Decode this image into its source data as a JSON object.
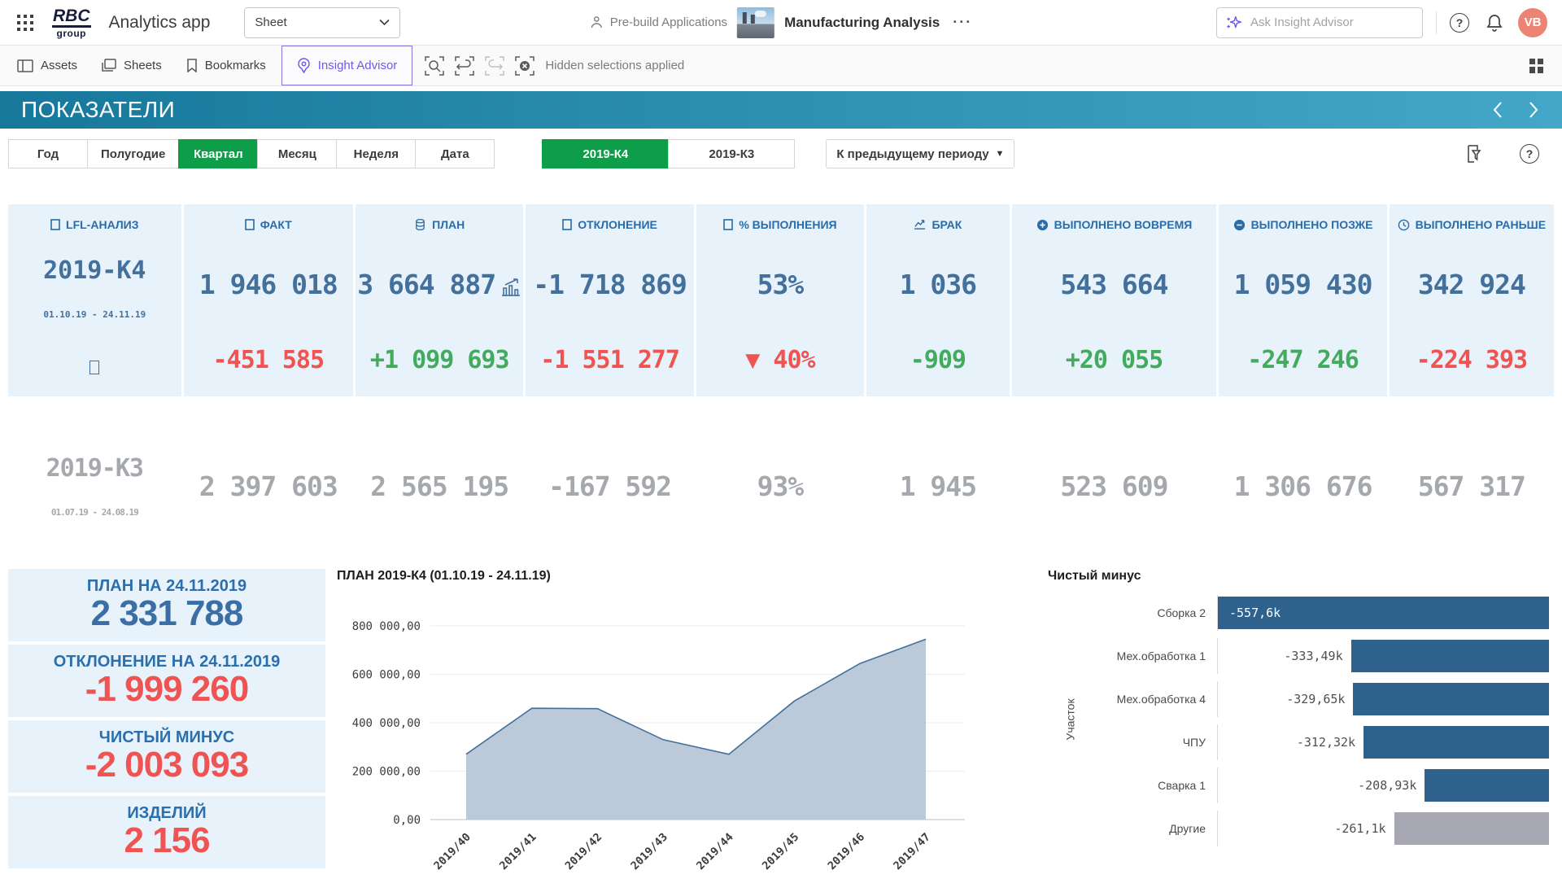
{
  "colors": {
    "teal_left": "#17789c",
    "teal_right": "#44a7c8",
    "selected_green": "#0e9e4a",
    "kpi_blue": "#44709c",
    "kpi_header_blue": "#2b6ca6",
    "negative_red": "#ef5352",
    "positive_green": "#43ab5e",
    "muted_gray": "#a5a9ad",
    "bar_blue": "#2e618c",
    "bar_gray": "#a8a8b4",
    "panel_blue": "#e7f2fa",
    "insight_purple": "#6a5ce8",
    "avatar_coral": "#ec8474"
  },
  "header": {
    "brand_top": "RBC",
    "brand_bottom": "group",
    "app_title": "Analytics app",
    "sheet_selector": "Sheet",
    "prebuild_label": "Pre-build Applications",
    "app_name": "Manufacturing Analysis",
    "more_label": "···",
    "search_placeholder": "Ask Insight Advisor",
    "avatar_initials": "VB",
    "help_label": "?"
  },
  "toolbar": {
    "assets": "Assets",
    "sheets": "Sheets",
    "bookmarks": "Bookmarks",
    "insight_advisor": "Insight Advisor",
    "hidden_selections": "Hidden selections applied"
  },
  "sheet": {
    "title": "ПОКАЗАТЕЛИ"
  },
  "filters": {
    "period_buttons": [
      {
        "label": "Год",
        "selected": false
      },
      {
        "label": "Полугодие",
        "selected": false
      },
      {
        "label": "Квартал",
        "selected": true
      },
      {
        "label": "Месяц",
        "selected": false
      },
      {
        "label": "Неделя",
        "selected": false
      },
      {
        "label": "Дата",
        "selected": false
      }
    ],
    "quarter_buttons": [
      {
        "label": "2019-К4",
        "selected": true
      },
      {
        "label": "2019-К3",
        "selected": false
      }
    ],
    "compare_dropdown": "К предыдущему периоду"
  },
  "kpi": {
    "lfl": {
      "header": "LFL-АНАЛИЗ",
      "current_period": "2019-К4",
      "current_dates": "01.10.19 - 24.11.19",
      "previous_period": "2019-К3",
      "previous_dates": "01.07.19 - 24.08.19"
    },
    "columns": [
      {
        "header": "ФАКТ",
        "icon": "doc",
        "value": "1 946 018",
        "delta": "-451 585",
        "delta_color": "red",
        "previous": "2 397 603"
      },
      {
        "header": "ПЛАН",
        "icon": "db",
        "value": "3 664 887",
        "value_icon": "chart-up",
        "delta": "+1 099 693",
        "delta_color": "green",
        "previous": "2 565 195"
      },
      {
        "header": "ОТКЛОНЕНИЕ",
        "icon": "doc",
        "value": "-1 718 869",
        "delta": "-1 551 277",
        "delta_color": "red",
        "previous": "-167 592"
      },
      {
        "header": "% ВЫПОЛНЕНИЯ",
        "icon": "doc",
        "value": "53%",
        "delta": "▼ 40%",
        "delta_color": "red",
        "previous": "93%"
      },
      {
        "header": "БРАК",
        "icon": "trend",
        "value": "1 036",
        "delta": "-909",
        "delta_color": "green",
        "previous": "1 945"
      },
      {
        "header": "ВЫПОЛНЕНО ВОВРЕМЯ",
        "icon": "plus",
        "value": "543 664",
        "delta": "+20 055",
        "delta_color": "green",
        "previous": "523 609"
      },
      {
        "header": "ВЫПОЛНЕНО ПОЗЖЕ",
        "icon": "minus",
        "value": "1 059 430",
        "delta": "-247 246",
        "delta_color": "green",
        "previous": "1 306 676"
      },
      {
        "header": "ВЫПОЛНЕНО РАНЬШЕ",
        "icon": "clock",
        "value": "342 924",
        "delta": "-224 393",
        "delta_color": "red",
        "previous": "567 317"
      }
    ]
  },
  "left_kpis": [
    {
      "label": "ПЛАН НА 24.11.2019",
      "value": "2 331 788",
      "color": "blue"
    },
    {
      "label": "ОТКЛОНЕНИЕ НА 24.11.2019",
      "value": "-1 999 260",
      "color": "red"
    },
    {
      "label": "ЧИСТЫЙ МИНУС",
      "value": "-2 003 093",
      "color": "red"
    },
    {
      "label": "ИЗДЕЛИЙ",
      "value": "2 156",
      "color": "red"
    }
  ],
  "chart_data": [
    {
      "type": "area",
      "title": "ПЛАН 2019-К4 (01.10.19 - 24.11.19)",
      "x": [
        "2019/40",
        "2019/41",
        "2019/42",
        "2019/43",
        "2019/44",
        "2019/45",
        "2019/46",
        "2019/47"
      ],
      "values": [
        270000,
        460000,
        458000,
        330000,
        270000,
        490000,
        645000,
        745000
      ],
      "ylim": [
        0,
        800000
      ],
      "ytick_labels": [
        "800 000,00",
        "600 000,00",
        "400 000,00",
        "200 000,00",
        "0,00"
      ],
      "grid": true,
      "legend": "none",
      "area_fill": "#bcc9d9",
      "line_color": "#40719f"
    },
    {
      "type": "bar",
      "orientation": "horizontal",
      "title": "Чистый минус",
      "ylabel": "Участок",
      "categories": [
        "Сборка 2",
        "Мех.обработка 1",
        "Мех.обработка 4",
        "ЧПУ",
        "Сварка 1",
        "Другие"
      ],
      "values": [
        -557600,
        -333490,
        -329650,
        -312320,
        -208930,
        -261100
      ],
      "value_labels": [
        "-557,6k",
        "-333,49k",
        "-329,65k",
        "-312,32k",
        "-208,93k",
        "-261,1k"
      ],
      "label_inside": [
        true,
        false,
        false,
        false,
        false,
        false
      ],
      "bar_colors": [
        "#2e618c",
        "#2e618c",
        "#2e618c",
        "#2e618c",
        "#2e618c",
        "#a8a8b4"
      ]
    }
  ]
}
